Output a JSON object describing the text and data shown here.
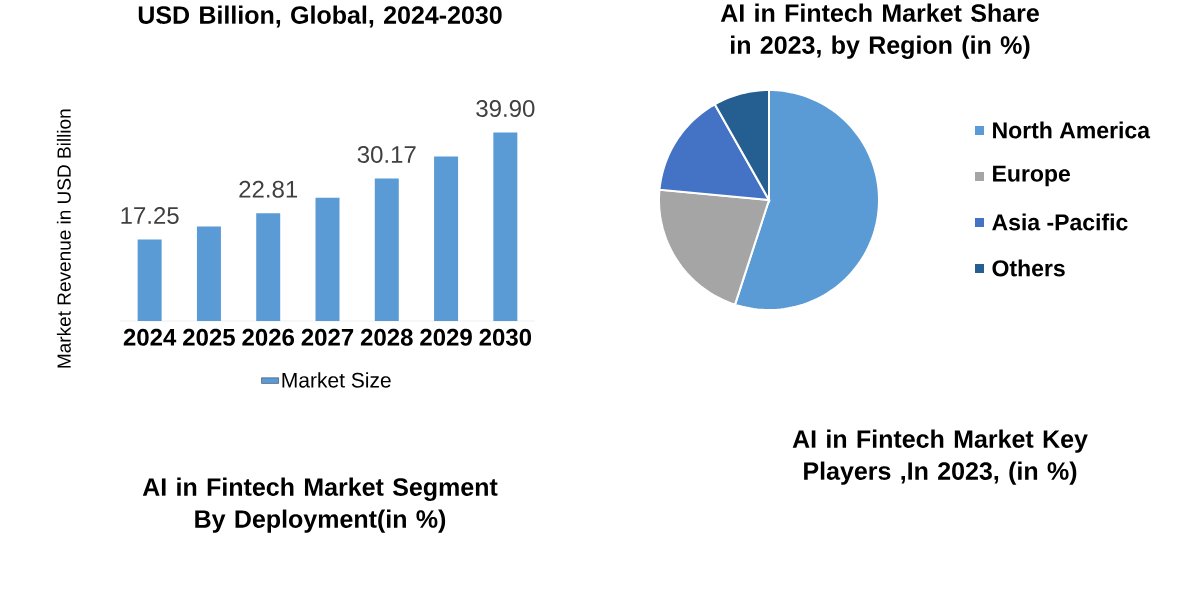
{
  "chart_data": [
    {
      "type": "bar",
      "title": "USD Billion, Global, 2024-2030",
      "ylabel": "Market Revenue in USD Billion",
      "categories": [
        "2024",
        "2025",
        "2026",
        "2027",
        "2028",
        "2029",
        "2030"
      ],
      "legend": "bottom",
      "series": [
        {
          "name": "Market Size",
          "color": "#5b9bd5",
          "values": [
            17.25,
            20.0,
            22.81,
            26.1,
            30.17,
            34.8,
            39.9
          ],
          "value_labels": [
            "17.25",
            null,
            "22.81",
            null,
            "30.17",
            null,
            "39.90"
          ]
        }
      ]
    },
    {
      "type": "pie",
      "title": "AI in Fintech Market Share in 2023, by Region (in %)",
      "legend": "right",
      "categories": [
        "North America",
        "Europe",
        "Asia -Pacific",
        "Others"
      ],
      "values": [
        55.0,
        21.5,
        15.3,
        8.2
      ],
      "colors": [
        "#5b9bd5",
        "#a5a5a5",
        "#4472c4",
        "#255e91"
      ]
    },
    {
      "type": "other",
      "title": "AI in Fintech Market Segment By Deployment(in %)"
    },
    {
      "type": "other",
      "title": "AI in Fintech Market Key Players ,In 2023, (in %)"
    }
  ]
}
